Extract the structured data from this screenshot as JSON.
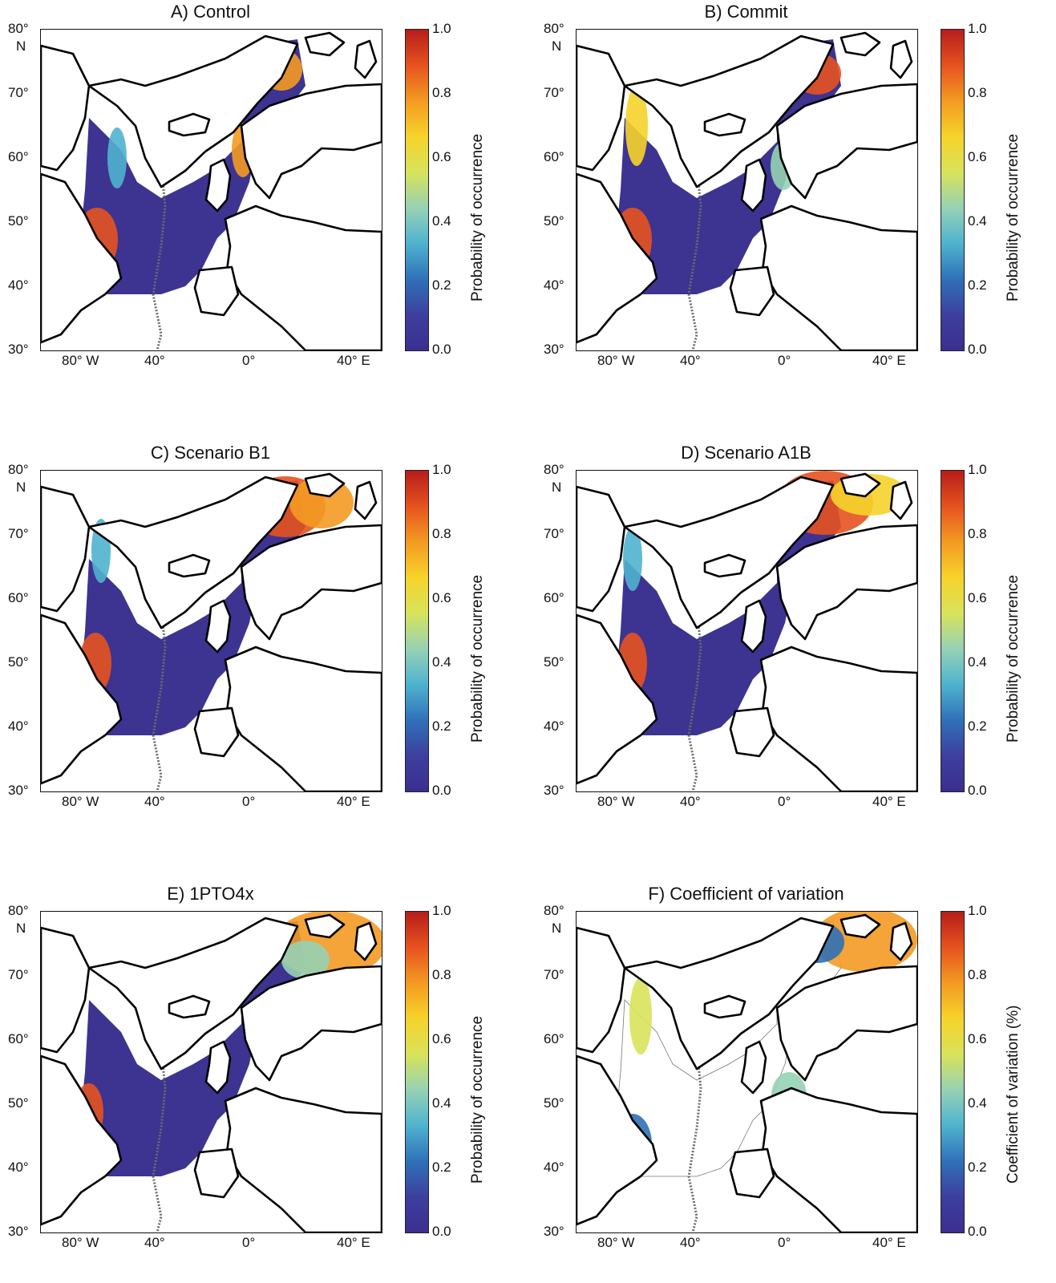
{
  "colors": {
    "scale": [
      "#3b2f8f",
      "#3d3f9f",
      "#2f71b8",
      "#4fb3cf",
      "#96d2b5",
      "#d8e35a",
      "#f6d32a",
      "#f39a22",
      "#e6521f",
      "#b61d1a"
    ],
    "ocean_low": "#3d3391",
    "coast": "#000000",
    "ridge": "#6b6b6b"
  },
  "axes": {
    "lat_labels": [
      "80°",
      "70°",
      "60°",
      "50°",
      "40°",
      "30°"
    ],
    "lat_unit": "N",
    "lon_labels": [
      "80° W",
      "40°",
      "0°",
      "40° E"
    ]
  },
  "colorbar": {
    "tick_labels": [
      "1.0",
      "0.8",
      "0.6",
      "0.4",
      "0.2",
      "0.0"
    ]
  },
  "panels": [
    {
      "title": "A)  Control",
      "colorbar_title": "Probability of occurrence",
      "show_N": true
    },
    {
      "title": "B)  Commit",
      "colorbar_title": "Probability of occurrence",
      "show_N": true
    },
    {
      "title": "C)  Scenario B1",
      "colorbar_title": "Probability of occurrence",
      "show_N": true
    },
    {
      "title": "D)  Scenario A1B",
      "colorbar_title": "Probability of occurrence",
      "show_N": true
    },
    {
      "title": "E)  1PTO4x",
      "colorbar_title": "Probability of occurrence",
      "show_N": true
    },
    {
      "title": "F)  Coefficient of variation",
      "colorbar_title": "Coefficient of variation  (%)",
      "show_N": true
    }
  ]
}
